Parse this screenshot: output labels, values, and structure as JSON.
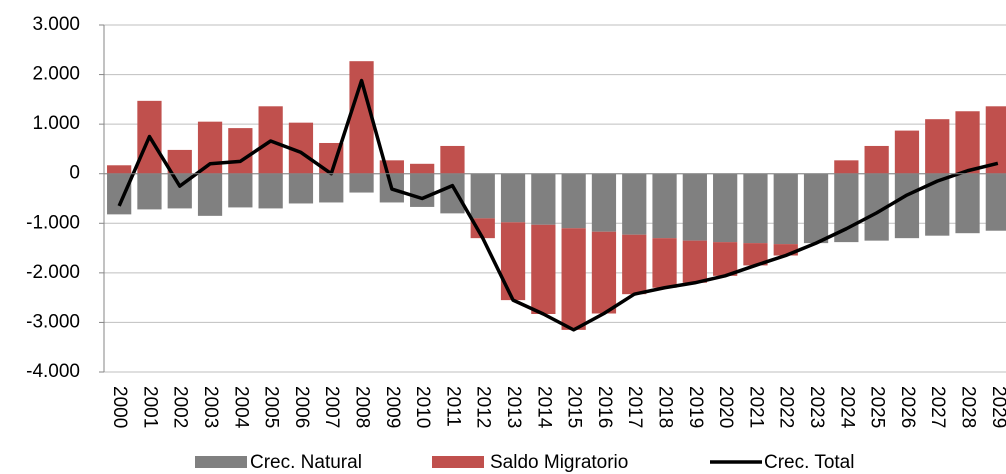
{
  "chart_data": {
    "type": "bar",
    "categories": [
      "2000",
      "2001",
      "2002",
      "2003",
      "2004",
      "2005",
      "2006",
      "2007",
      "2008",
      "2009",
      "2010",
      "2011",
      "2012",
      "2013",
      "2014",
      "2015",
      "2016",
      "2017",
      "2018",
      "2019",
      "2020",
      "2021",
      "2022",
      "2023",
      "2024",
      "2025",
      "2026",
      "2027",
      "2028",
      "2029"
    ],
    "series": [
      {
        "name": "Crec. Natural",
        "type": "bar",
        "color": "#808080",
        "values": [
          -820,
          -720,
          -700,
          -850,
          -680,
          -700,
          -600,
          -580,
          -380,
          -580,
          -670,
          -800,
          -900,
          -980,
          -1030,
          -1100,
          -1170,
          -1230,
          -1300,
          -1350,
          -1380,
          -1400,
          -1420,
          -1400,
          -1380,
          -1350,
          -1300,
          -1250,
          -1200,
          -1150
        ]
      },
      {
        "name": "Saldo Migratorio",
        "type": "bar",
        "color": "#c0504d",
        "values": [
          170,
          1470,
          480,
          1050,
          920,
          1360,
          1030,
          620,
          2270,
          270,
          200,
          560,
          -400,
          -1570,
          -1800,
          -2050,
          -1650,
          -1200,
          -1000,
          -850,
          -680,
          -450,
          -230,
          0,
          270,
          560,
          870,
          1100,
          1260,
          1360
        ]
      },
      {
        "name": "Crec. Total",
        "type": "line",
        "color": "#000000",
        "values": [
          -650,
          750,
          -250,
          200,
          250,
          660,
          430,
          0,
          1880,
          -310,
          -500,
          -240,
          -1300,
          -2550,
          -2830,
          -3150,
          -2820,
          -2430,
          -2300,
          -2200,
          -2060,
          -1850,
          -1650,
          -1400,
          -1110,
          -790,
          -430,
          -150,
          60,
          210
        ]
      }
    ],
    "ylim": [
      -4000,
      3000
    ],
    "yticks": [
      {
        "value": -4000,
        "label": "-4.000"
      },
      {
        "value": -3000,
        "label": "-3.000"
      },
      {
        "value": -2000,
        "label": "-2.000"
      },
      {
        "value": -1000,
        "label": "-1.000"
      },
      0,
      {
        "value": 1000,
        "label": "1.000"
      },
      {
        "value": 2000,
        "label": "2.000"
      },
      {
        "value": 3000,
        "label": "3.000"
      }
    ],
    "grid": true,
    "legend": "bottom"
  }
}
